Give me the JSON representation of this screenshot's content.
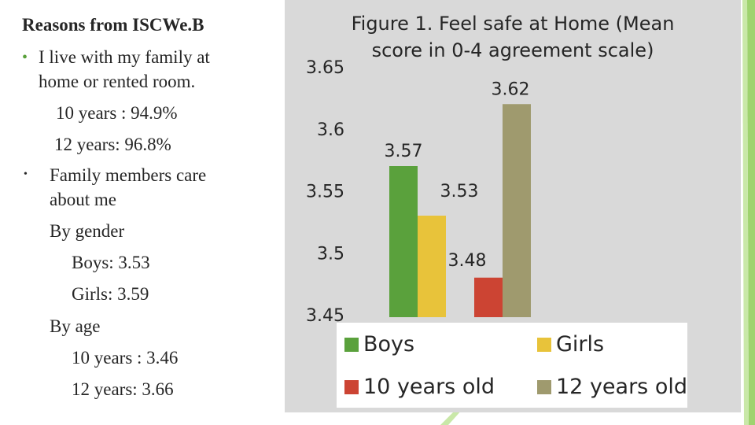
{
  "left": {
    "heading": "Reasons from ISCWe.B",
    "bullet1": "I live with my family at",
    "bullet1_cont": "home or rented room.",
    "stat_10y": "10 years : 94.9%",
    "stat_12y": "12 years: 96.8%",
    "bullet2": "Family members care",
    "bullet2_cont": "about me",
    "by_gender": "By gender",
    "boys": "Boys: 3.53",
    "girls": "Girls: 3.59",
    "by_age": "By age",
    "age10": "10 years : 3.46",
    "age12": "12 years: 3.66"
  },
  "colors": {
    "boys": "#5aa13c",
    "girls": "#e8c33a",
    "y10": "#cc4433",
    "y12": "#9f9a6e"
  },
  "chart_data": {
    "type": "bar",
    "title": "Figure 1. Feel safe at Home (Mean score in 0-4 agreement  scale)",
    "title_line1": "Figure 1. Feel safe at Home (Mean",
    "title_line2": "score in 0-4 agreement  scale)",
    "categories": [
      "Boys",
      "Girls",
      "10 years old",
      "12 years old"
    ],
    "values": [
      3.57,
      3.53,
      3.48,
      3.62
    ],
    "labels": [
      "3.57",
      "3.53",
      "3.48",
      "3.62"
    ],
    "ylim": [
      3.45,
      3.65
    ],
    "yticks": [
      "3.45",
      "3.5",
      "3.55",
      "3.6",
      "3.65"
    ],
    "legend": [
      "Boys",
      "Girls",
      "10 years old",
      "12 years old"
    ],
    "legend_position": "bottom",
    "grid": false
  }
}
